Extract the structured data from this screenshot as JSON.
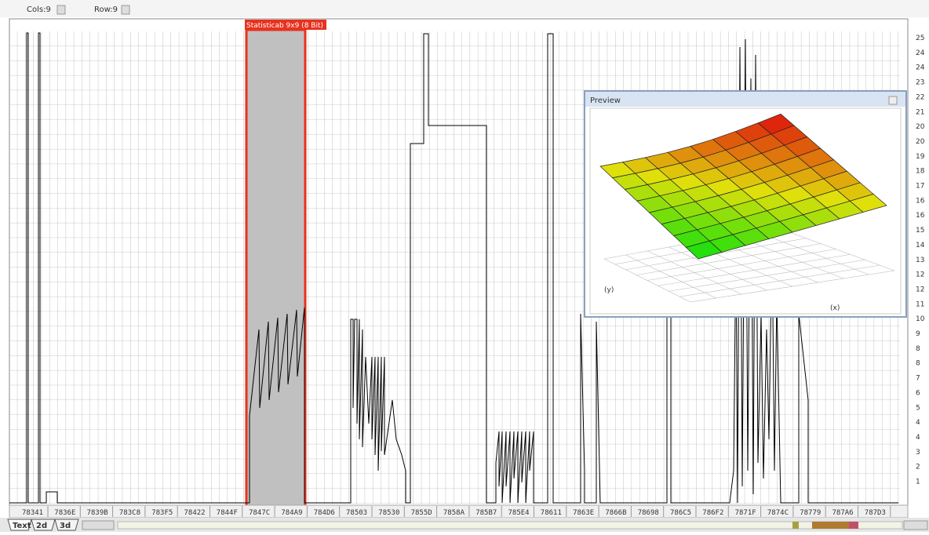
{
  "toolbar": {
    "cols": "Cols:9",
    "rows": "Row:9"
  },
  "selection": {
    "label": "Statisticab 9x9 (8 Bit)"
  },
  "addresses": [
    "78341",
    "7836E",
    "7839B",
    "783C8",
    "783F5",
    "78422",
    "7844F",
    "7847C",
    "784A9",
    "784D6",
    "78503",
    "78530",
    "7855D",
    "7858A",
    "785B7",
    "785E4",
    "78611",
    "7863E",
    "7866B",
    "78698",
    "786C5",
    "786F2",
    "7871F",
    "7874C",
    "78779",
    "787A6",
    "787D3"
  ],
  "y_labels": [
    "25",
    "24",
    "24",
    "23",
    "22",
    "21",
    "20",
    "20",
    "19",
    "18",
    "17",
    "16",
    "16",
    "15",
    "14",
    "13",
    "12",
    "12",
    "11",
    "10",
    "9",
    "8",
    "8",
    "7",
    "6",
    "5",
    "4",
    "4",
    "3",
    "2",
    "1"
  ],
  "tabs": [
    "Text",
    "2d",
    "3d"
  ],
  "preview": {
    "title": "Preview",
    "y_axis": "(y)",
    "x_axis": "(x)"
  }
}
